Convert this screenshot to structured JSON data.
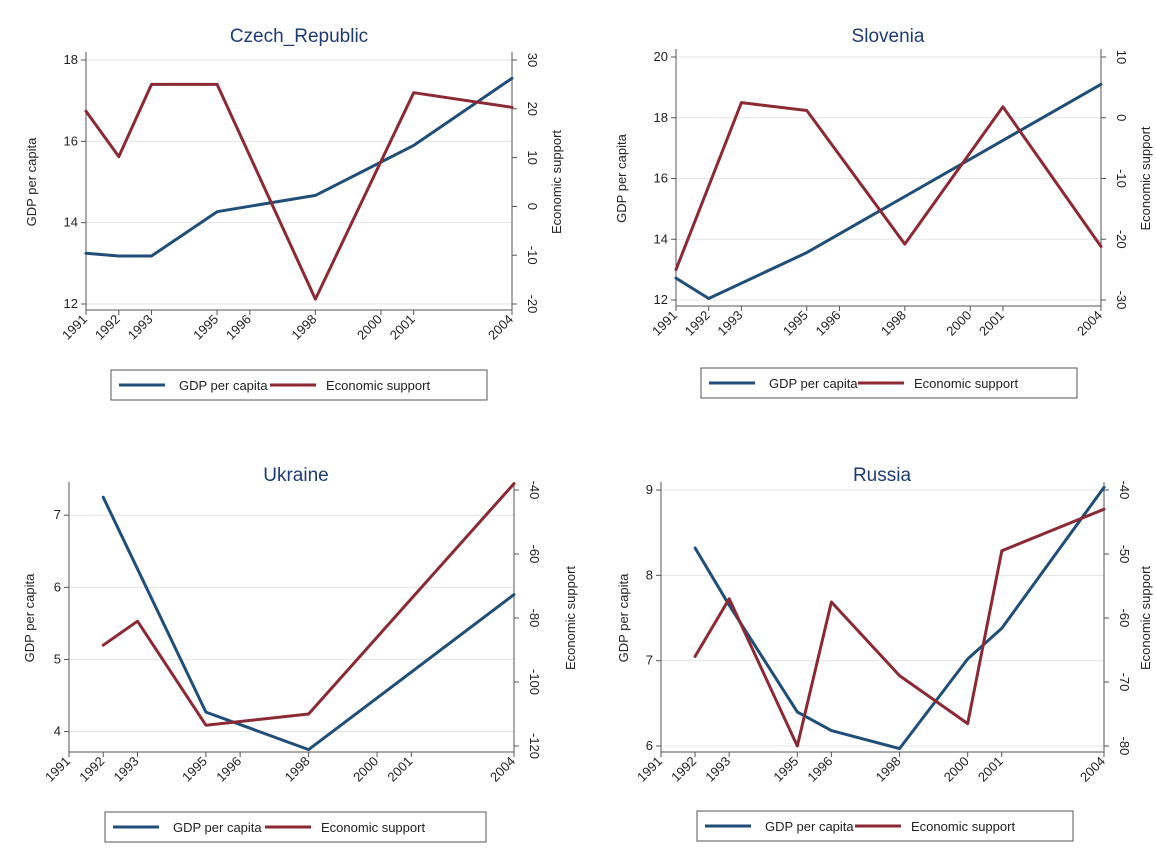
{
  "colors": {
    "gdp": "#1f4e79",
    "support": "#8b2a35",
    "grid": "#e4e4e4",
    "axis": "#555555"
  },
  "chart_data": [
    {
      "type": "line",
      "title": "Czech_Republic",
      "x_ticks": [
        1991,
        1992,
        1993,
        1995,
        1996,
        1998,
        2000,
        2001,
        2004
      ],
      "xlim": [
        1991,
        2004
      ],
      "ylabel": "GDP per capita",
      "ylim": [
        12,
        18
      ],
      "yticks": [
        12,
        14,
        16,
        18
      ],
      "y2label": "Economic support",
      "y2lim": [
        -20,
        30
      ],
      "y2ticks": [
        -20,
        -10,
        0,
        10,
        20,
        30
      ],
      "legend": [
        "GDP per capita",
        "Economic support"
      ],
      "legend_position": "bottom",
      "series": [
        {
          "name": "GDP per capita",
          "axis": "left",
          "x": [
            1991,
            1992,
            1993,
            1995,
            1998,
            2001,
            2004
          ],
          "values": [
            13.25,
            13.18,
            13.18,
            14.27,
            14.67,
            15.9,
            17.55
          ]
        },
        {
          "name": "Economic support",
          "axis": "right",
          "x": [
            1991,
            1992,
            1993,
            1995,
            1998,
            2001,
            2004
          ],
          "values": [
            19.5,
            10.2,
            25,
            25,
            -19,
            23.3,
            20.3
          ]
        }
      ]
    },
    {
      "type": "line",
      "title": "Slovenia",
      "x_ticks": [
        1991,
        1992,
        1993,
        1995,
        1996,
        1998,
        2000,
        2001,
        2004
      ],
      "xlim": [
        1991,
        2004
      ],
      "ylabel": "GDP per capita",
      "ylim": [
        12,
        20
      ],
      "yticks": [
        12,
        14,
        16,
        18,
        20
      ],
      "y2label": "Economic support",
      "y2lim": [
        -30,
        10
      ],
      "y2ticks": [
        -30,
        -20,
        -10,
        0,
        10
      ],
      "legend": [
        "GDP per capita",
        "Economic support"
      ],
      "legend_position": "bottom",
      "series": [
        {
          "name": "GDP per capita",
          "axis": "left",
          "x": [
            1991,
            1992,
            1995,
            2004
          ],
          "values": [
            12.72,
            12.05,
            13.56,
            19.1
          ]
        },
        {
          "name": "Economic support",
          "axis": "right",
          "x": [
            1991,
            1993,
            1995,
            1998,
            2001,
            2004
          ],
          "values": [
            -25,
            2.5,
            1.2,
            -20.8,
            1.8,
            -21.2
          ]
        }
      ]
    },
    {
      "type": "line",
      "title": "Ukraine",
      "x_ticks": [
        1991,
        1992,
        1993,
        1995,
        1996,
        1998,
        2000,
        2001,
        2004
      ],
      "xlim": [
        1991,
        2004
      ],
      "ylabel": "GDP per capita",
      "ylim": [
        3.8,
        7.35
      ],
      "yticks": [
        4,
        5,
        6,
        7
      ],
      "y2label": "Economic support",
      "y2lim": [
        -120,
        -40
      ],
      "y2ticks": [
        -120,
        -100,
        -80,
        -60,
        -40
      ],
      "legend": [
        "GDP per capita",
        "Economic support"
      ],
      "legend_position": "bottom",
      "series": [
        {
          "name": "GDP per capita",
          "axis": "left",
          "x": [
            1992,
            1995,
            1998,
            2004
          ],
          "values": [
            7.25,
            4.27,
            3.75,
            5.9
          ]
        },
        {
          "name": "Economic support",
          "axis": "right",
          "x": [
            1992,
            1993,
            1995,
            1998,
            2004
          ],
          "values": [
            -88.5,
            -81,
            -113.5,
            -110,
            -38
          ]
        }
      ]
    },
    {
      "type": "line",
      "title": "Russia",
      "x_ticks": [
        1991,
        1992,
        1993,
        1995,
        1996,
        1998,
        2000,
        2001,
        2004
      ],
      "xlim": [
        1991,
        2004
      ],
      "ylabel": "GDP per capita",
      "ylim": [
        6,
        9
      ],
      "yticks": [
        6,
        7,
        8,
        9
      ],
      "y2label": "Economic support",
      "y2lim": [
        -80,
        -40
      ],
      "y2ticks": [
        -80,
        -70,
        -60,
        -50,
        -40
      ],
      "legend": [
        "GDP per capita",
        "Economic support"
      ],
      "legend_position": "bottom",
      "series": [
        {
          "name": "GDP per capita",
          "axis": "left",
          "x": [
            1992,
            1993,
            1995,
            1996,
            1998,
            2000,
            2001,
            2004
          ],
          "values": [
            8.32,
            7.65,
            6.4,
            6.18,
            5.97,
            7.02,
            7.38,
            9.03
          ]
        },
        {
          "name": "Economic support",
          "axis": "right",
          "x": [
            1992,
            1993,
            1995,
            1996,
            1998,
            2000,
            2001,
            2004
          ],
          "values": [
            -66,
            -57,
            -80,
            -57.5,
            -69,
            -76.5,
            -49.5,
            -43
          ]
        }
      ]
    }
  ]
}
